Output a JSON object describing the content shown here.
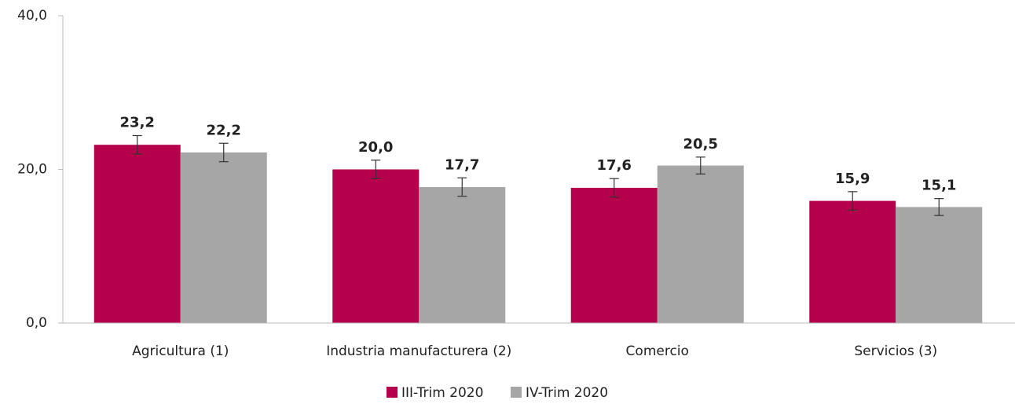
{
  "chart_data": {
    "type": "bar",
    "categories": [
      "Agricultura (1)",
      "Industria manufacturera (2)",
      "Comercio",
      "Servicios (3)"
    ],
    "series": [
      {
        "name": "III-Trim 2020",
        "color": "#b5004b",
        "values": [
          23.2,
          20.0,
          17.6,
          15.9
        ],
        "value_labels": [
          "23,2",
          "20,0",
          "17,6",
          "15,9"
        ],
        "errors": [
          1.2,
          1.2,
          1.2,
          1.2
        ]
      },
      {
        "name": "IV-Trim 2020",
        "color": "#a6a6a6",
        "values": [
          22.2,
          17.7,
          20.5,
          15.1
        ],
        "value_labels": [
          "22,2",
          "17,7",
          "20,5",
          "15,1"
        ],
        "errors": [
          1.2,
          1.2,
          1.1,
          1.1
        ]
      }
    ],
    "ylim": [
      0,
      40
    ],
    "yticks": [
      {
        "value": 0,
        "label": "0,0"
      },
      {
        "value": 20,
        "label": "20,0"
      },
      {
        "value": 40,
        "label": "40,0"
      }
    ],
    "grid": false,
    "legend": "bottom"
  }
}
